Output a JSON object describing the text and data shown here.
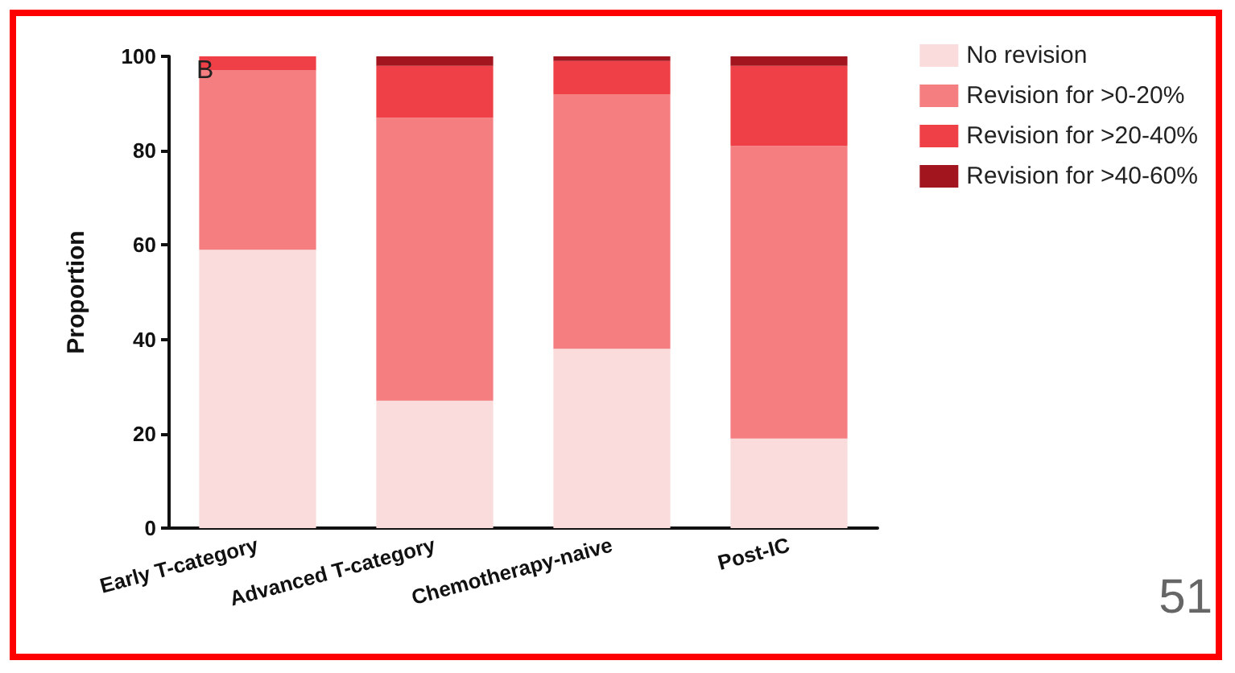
{
  "chart_data": {
    "type": "bar",
    "stacked": true,
    "ylabel": "Proportion",
    "categories": [
      "Early T-category",
      "Advanced T-category",
      "Chemotherapy-naive",
      "Post-IC"
    ],
    "series": [
      {
        "name": "No revision",
        "color": "#fadcdd",
        "values": [
          59,
          27,
          38,
          19
        ]
      },
      {
        "name": "Revision for >0-20%",
        "color": "#f47e80",
        "values": [
          38,
          60,
          54,
          62
        ]
      },
      {
        "name": "Revision for >20-40%",
        "color": "#ee4046",
        "values": [
          3,
          11,
          7,
          17
        ]
      },
      {
        "name": "Revision for >40-60%",
        "color": "#a3151e",
        "values": [
          0,
          2,
          1,
          2
        ]
      }
    ],
    "ylim": [
      0,
      100
    ],
    "yticks": [
      0,
      20,
      40,
      60,
      80,
      100
    ],
    "grid": false,
    "legend": "top right",
    "annotations": [
      "B",
      "51"
    ]
  }
}
